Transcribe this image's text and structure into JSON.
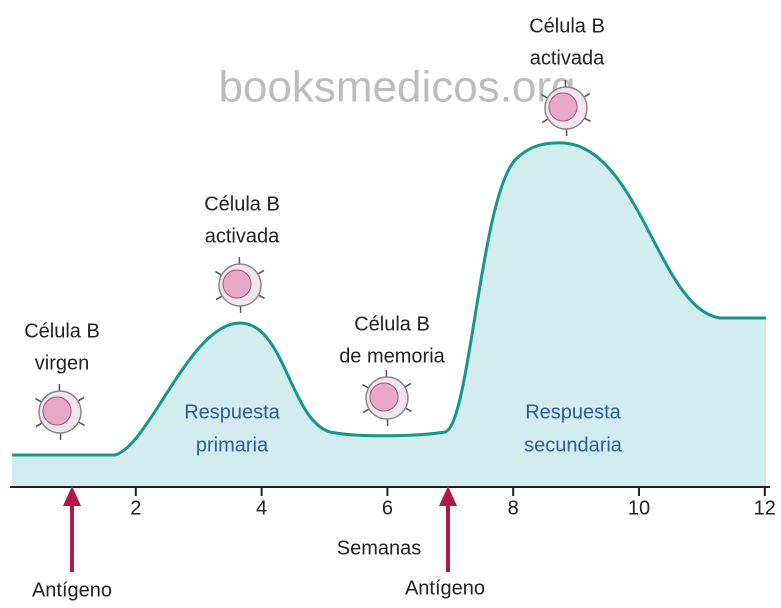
{
  "watermark": "booksmedicos.org",
  "x_axis": {
    "label": "Semanas",
    "ticks": [
      2,
      4,
      6,
      8,
      10,
      12
    ]
  },
  "cells": [
    {
      "lines": [
        "Célula B",
        "virgen"
      ]
    },
    {
      "lines": [
        "Célula B",
        "activada"
      ]
    },
    {
      "lines": [
        "Célula B",
        "de memoria"
      ]
    },
    {
      "lines": [
        "Célula B",
        "activada"
      ]
    }
  ],
  "responses": [
    {
      "lines": [
        "Respuesta",
        "primaria"
      ]
    },
    {
      "lines": [
        "Respuesta",
        "secundaria"
      ]
    }
  ],
  "antigens": [
    "Antígeno",
    "Antígeno"
  ]
}
